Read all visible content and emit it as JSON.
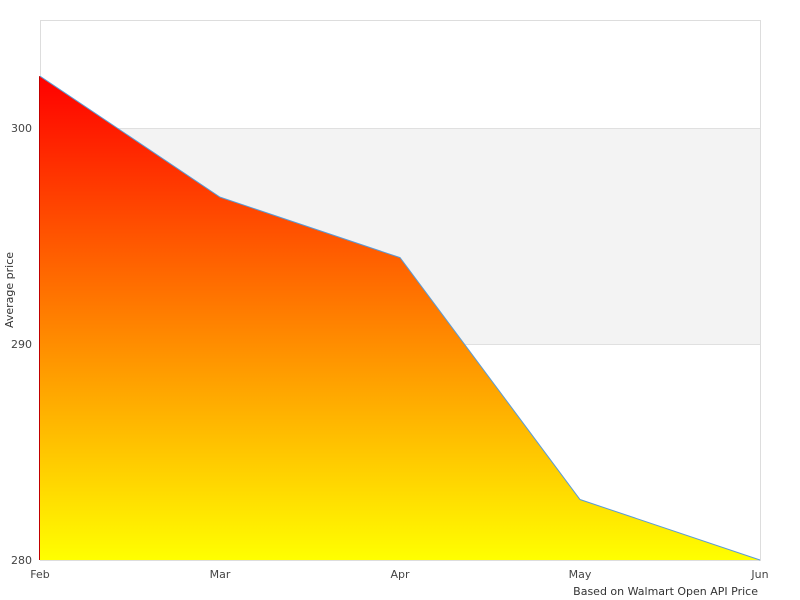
{
  "chart_data": {
    "type": "area",
    "title": "",
    "xlabel": "",
    "ylabel": "Average price",
    "footnote": "Based on Walmart Open API Price",
    "categories": [
      "Feb",
      "Mar",
      "Apr",
      "May",
      "Jun"
    ],
    "values": [
      302.4,
      296.8,
      294.0,
      282.8,
      280.0
    ],
    "ylim": [
      280,
      305
    ],
    "yticks": [
      "280",
      "290",
      "300"
    ],
    "grid": "alternating horizontal bands",
    "legend": "none",
    "colors": {
      "gradient_top": "#ff0000",
      "gradient_bottom": "#ffff00",
      "line": "#5b9bd5",
      "band": "#f3f3f3"
    }
  }
}
